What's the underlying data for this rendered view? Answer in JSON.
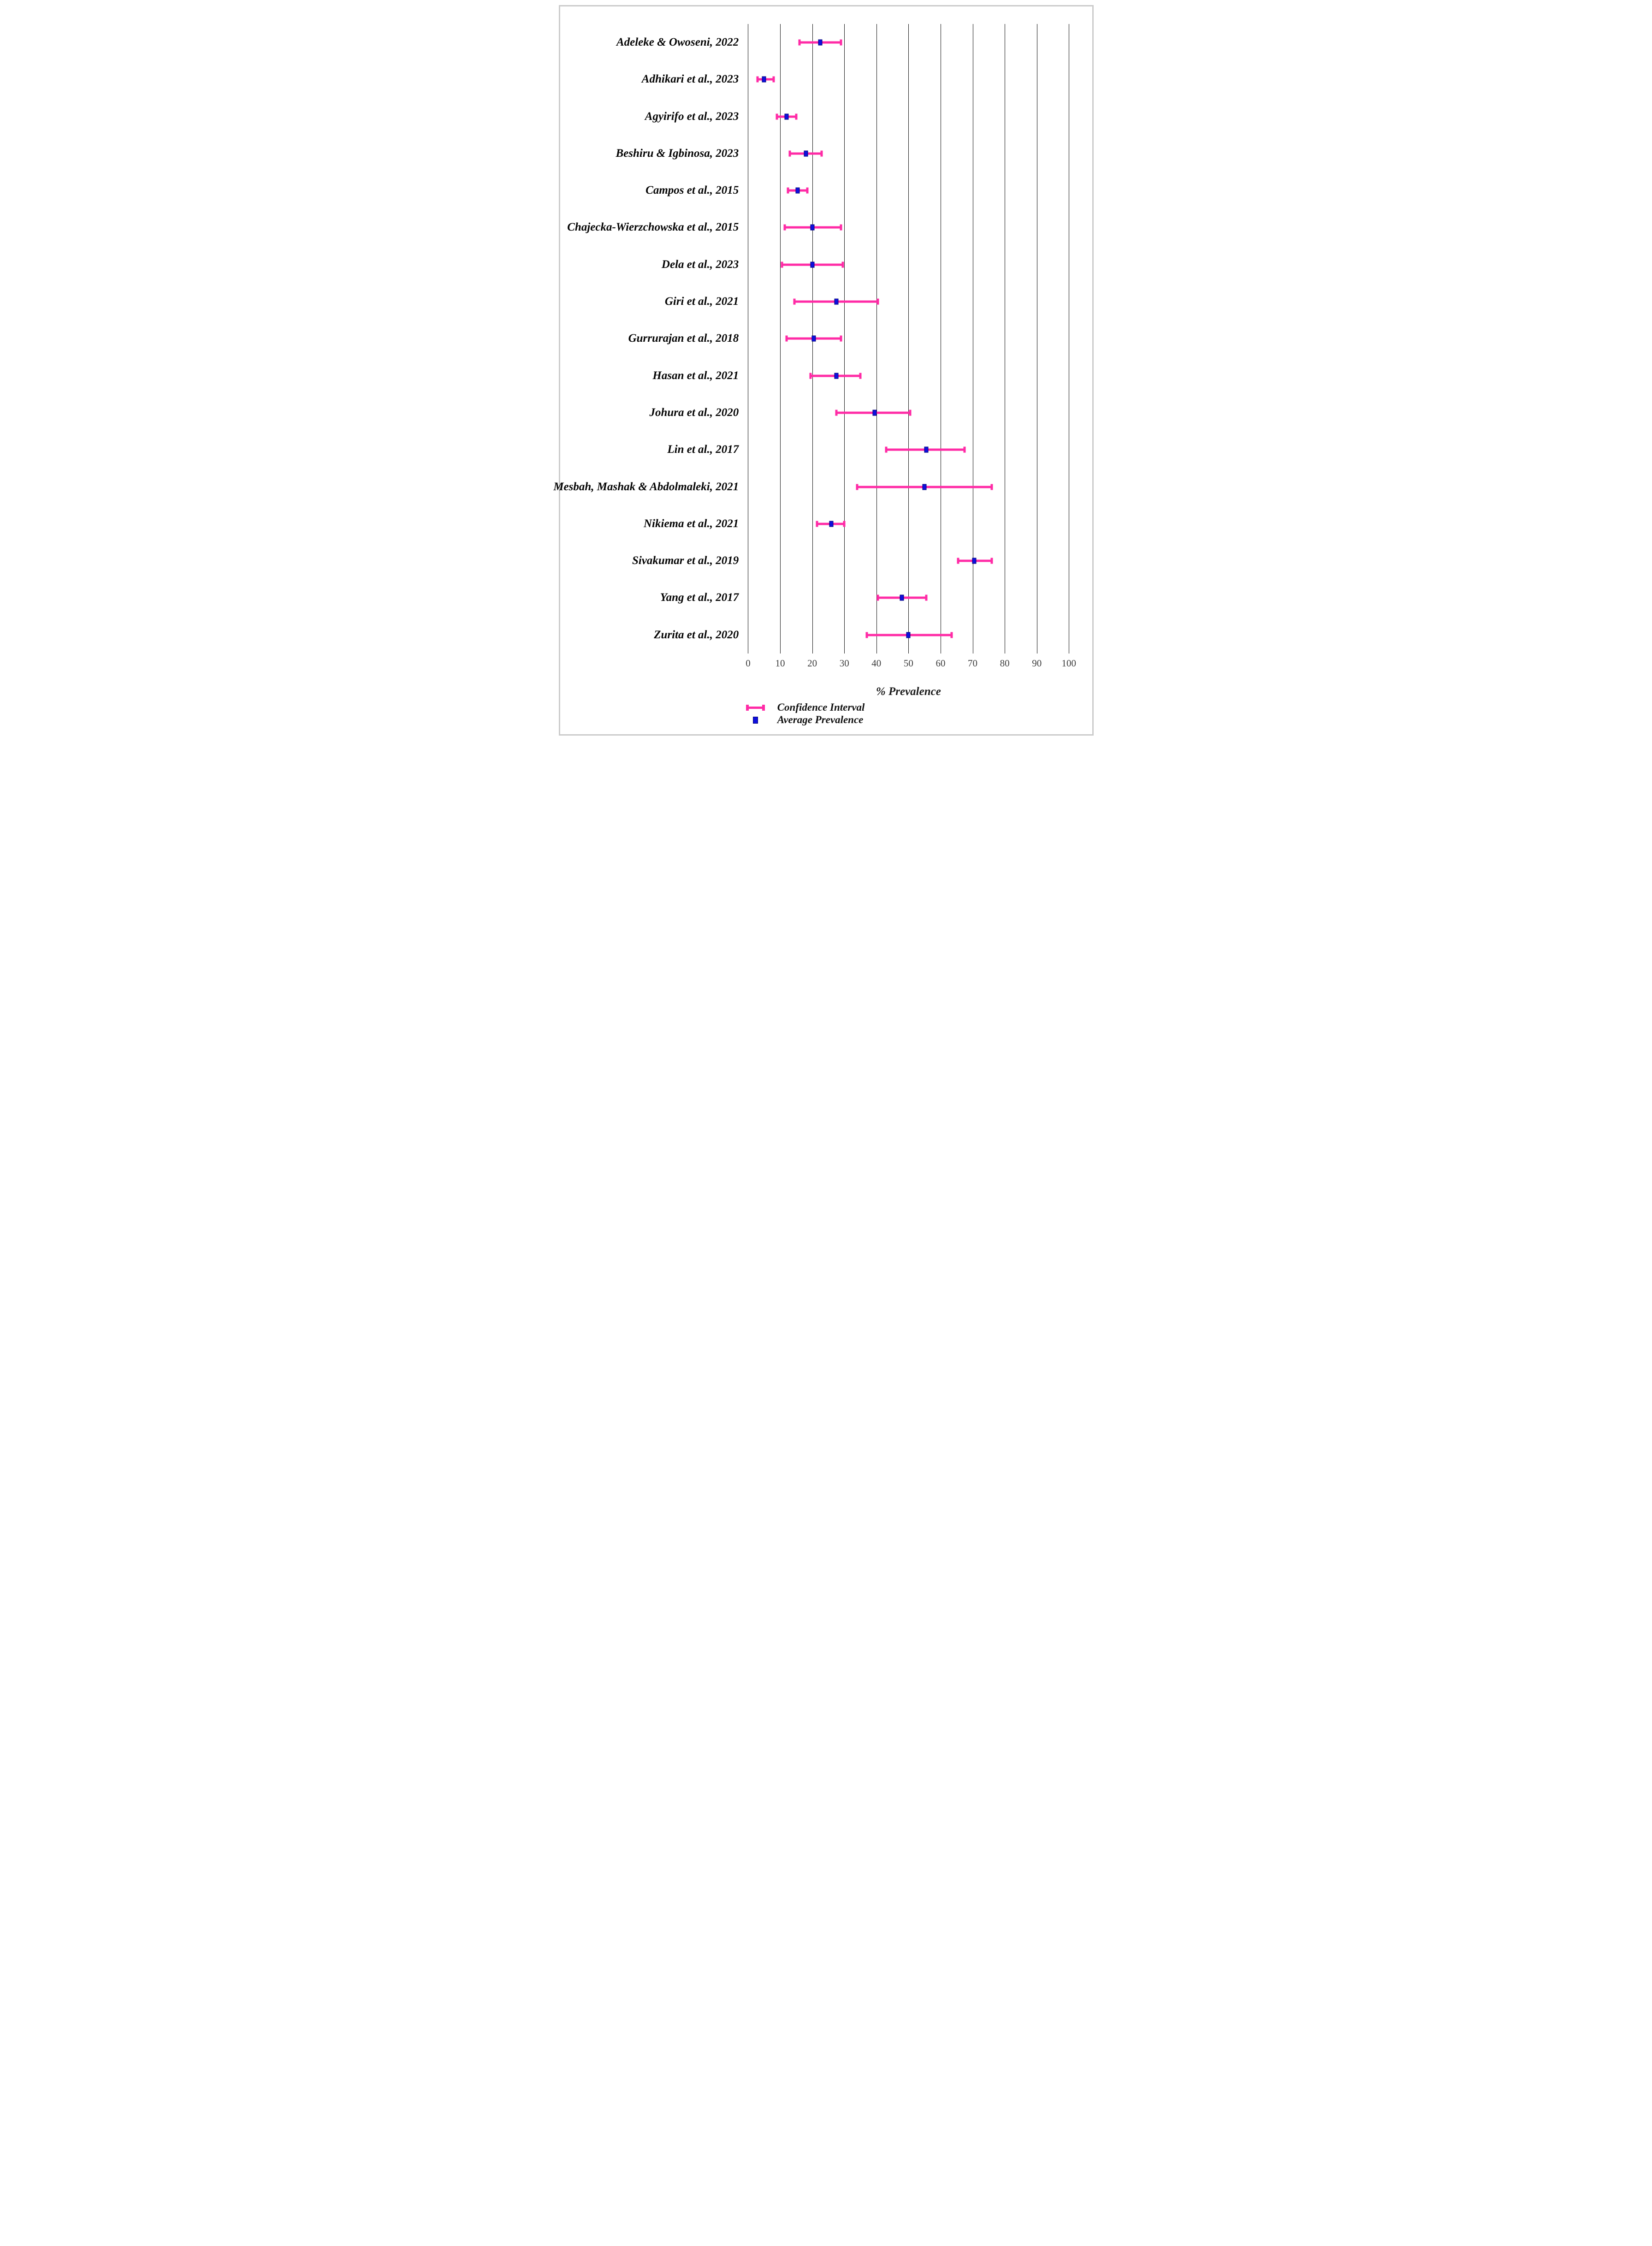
{
  "colors": {
    "ci_pink": "#ff2ba6",
    "avg_blue_fill": "#0f0fdd",
    "avg_blue_border": "#000070",
    "gridline": "#151515",
    "tick_text": "#3d3d3d",
    "label_text": "#050505",
    "frame_border": "#cbcbcb"
  },
  "legend": {
    "ci_label": "Confidence Interval",
    "avg_label": "Average Prevalence",
    "ci_icon": "confidence-interval-errorbar-icon",
    "avg_icon": "average-prevalence-square-icon"
  },
  "chart_data": {
    "type": "scatter",
    "subtype": "horizontal-forest-errorbar",
    "title": "",
    "xlabel": "% Prevalence",
    "ylabel": "",
    "xlim": [
      0,
      100
    ],
    "x_ticks": [
      0,
      10,
      20,
      30,
      40,
      50,
      60,
      70,
      80,
      90,
      100
    ],
    "grid": "vertical gridlines on",
    "legend_position": "bottom-left",
    "series_names": [
      "Confidence Interval",
      "Average Prevalence"
    ],
    "studies": [
      {
        "label": "Adeleke & Owoseni, 2022",
        "ci_low": 16,
        "mean": 22.5,
        "ci_high": 29
      },
      {
        "label": "Adhikari et al., 2023",
        "ci_low": 3,
        "mean": 5,
        "ci_high": 8
      },
      {
        "label": "Agyirifo et al., 2023",
        "ci_low": 9,
        "mean": 12,
        "ci_high": 15
      },
      {
        "label": "Beshiru & Igbinosa, 2023",
        "ci_low": 13,
        "mean": 18,
        "ci_high": 23
      },
      {
        "label": "Campos et al., 2015",
        "ci_low": 12.5,
        "mean": 15.5,
        "ci_high": 18.5
      },
      {
        "label": "Chajecka-Wierzchowska et al., 2015",
        "ci_low": 11.5,
        "mean": 20,
        "ci_high": 29
      },
      {
        "label": "Dela et al., 2023",
        "ci_low": 10.5,
        "mean": 20,
        "ci_high": 29.5
      },
      {
        "label": "Giri et al., 2021",
        "ci_low": 14.5,
        "mean": 27.5,
        "ci_high": 40.5
      },
      {
        "label": "Gurrurajan et al., 2018",
        "ci_low": 12,
        "mean": 20.5,
        "ci_high": 29
      },
      {
        "label": "Hasan et al., 2021",
        "ci_low": 19.5,
        "mean": 27.5,
        "ci_high": 35
      },
      {
        "label": "Johura et al., 2020",
        "ci_low": 27.5,
        "mean": 39.5,
        "ci_high": 50.5
      },
      {
        "label": "Lin et al., 2017",
        "ci_low": 43,
        "mean": 55.5,
        "ci_high": 67.5
      },
      {
        "label": "Mesbah, Mashak & Abdolmaleki, 2021",
        "ci_low": 34,
        "mean": 55,
        "ci_high": 76
      },
      {
        "label": "Nikiema et al., 2021",
        "ci_low": 21.5,
        "mean": 26,
        "ci_high": 30
      },
      {
        "label": "Sivakumar et al., 2019",
        "ci_low": 65.5,
        "mean": 70.5,
        "ci_high": 76
      },
      {
        "label": "Yang et al., 2017",
        "ci_low": 40.5,
        "mean": 48,
        "ci_high": 55.5
      },
      {
        "label": "Zurita et al., 2020",
        "ci_low": 37,
        "mean": 50,
        "ci_high": 63.5
      }
    ]
  }
}
